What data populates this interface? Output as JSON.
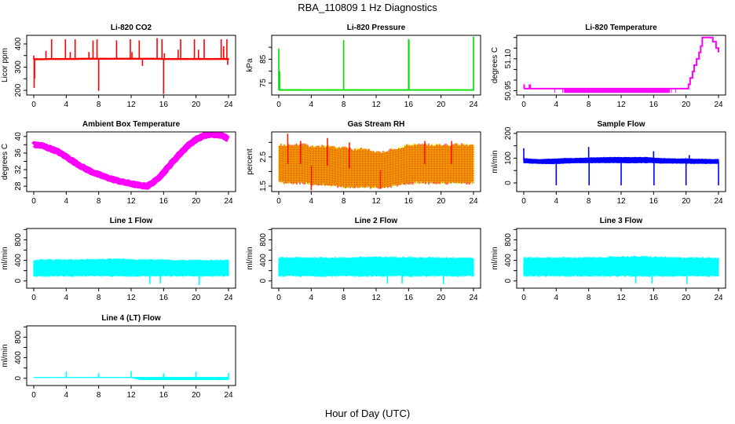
{
  "figure": {
    "title": "RBA_110809  1 Hz Diagnostics",
    "xlabel": "Hour of Day (UTC)"
  },
  "chart_data": [
    {
      "type": "line",
      "title": "Li-820 CO2",
      "ylabel": "Licor ppm",
      "color": "#ff0000",
      "xlim": [
        0,
        24
      ],
      "xticks": [
        0,
        4,
        8,
        12,
        16,
        20,
        24
      ],
      "ylim": [
        180,
        437
      ],
      "yticks": [
        200,
        250,
        300,
        350,
        400
      ],
      "ylabels": [
        200,
        300,
        400
      ],
      "band_lo": [
        330,
        330,
        331,
        331,
        331,
        331,
        332,
        332,
        332,
        332,
        332,
        332,
        332,
        332,
        332,
        332,
        331,
        331,
        331,
        331,
        331,
        331,
        331,
        331,
        331
      ],
      "band_hi": [
        338,
        338,
        339,
        339,
        339,
        339,
        340,
        340,
        340,
        340,
        340,
        340,
        340,
        340,
        340,
        340,
        339,
        339,
        339,
        339,
        339,
        339,
        339,
        339,
        339
      ],
      "spikes": [
        [
          0,
          350
        ],
        [
          0.05,
          210
        ],
        [
          0.1,
          250
        ],
        [
          1.5,
          370
        ],
        [
          2.2,
          420
        ],
        [
          3.9,
          420
        ],
        [
          4.5,
          365
        ],
        [
          5.1,
          420
        ],
        [
          6.8,
          365
        ],
        [
          7.3,
          415
        ],
        [
          7.8,
          420
        ],
        [
          8.0,
          198
        ],
        [
          10.2,
          415
        ],
        [
          11.9,
          420
        ],
        [
          12.1,
          365
        ],
        [
          13.0,
          415
        ],
        [
          13.4,
          305
        ],
        [
          15.2,
          425
        ],
        [
          15.8,
          420
        ],
        [
          16.0,
          185
        ],
        [
          16.1,
          360
        ],
        [
          17.8,
          375
        ],
        [
          18.1,
          420
        ],
        [
          19.8,
          420
        ],
        [
          20.3,
          375
        ],
        [
          21.0,
          420
        ],
        [
          23.1,
          420
        ],
        [
          23.4,
          390
        ],
        [
          23.8,
          420
        ],
        [
          23.9,
          310
        ]
      ]
    },
    {
      "type": "line",
      "title": "Li-820 Pressure",
      "ylabel": "kPa",
      "color": "#00dd00",
      "xlim": [
        0,
        24
      ],
      "xticks": [
        0,
        4,
        8,
        12,
        16,
        20,
        24
      ],
      "ylim": [
        70,
        95
      ],
      "yticks": [
        75,
        80,
        85,
        90
      ],
      "ylabels": [
        75,
        85
      ],
      "band_lo": [
        71.8,
        71.8,
        71.8,
        71.8,
        71.8,
        71.8,
        71.8,
        71.8,
        71.8,
        71.8,
        71.8,
        71.8,
        71.8,
        71.8,
        71.8,
        71.8,
        71.8,
        71.8,
        71.8,
        71.8,
        71.8,
        71.8,
        71.8,
        71.8,
        71.8
      ],
      "band_hi": [
        72.4,
        72.4,
        72.4,
        72.4,
        72.4,
        72.4,
        72.4,
        72.4,
        72.4,
        72.4,
        72.4,
        72.4,
        72.4,
        72.4,
        72.4,
        72.4,
        72.4,
        72.4,
        72.4,
        72.4,
        72.4,
        72.4,
        72.4,
        72.4,
        72.4
      ],
      "spikes": [
        [
          0,
          89.5
        ],
        [
          0.1,
          80
        ],
        [
          8,
          93
        ],
        [
          16,
          93.5
        ],
        [
          16.05,
          93
        ],
        [
          24,
          94.5
        ]
      ]
    },
    {
      "type": "step",
      "title": "Li-820 Temperature",
      "ylabel": "degrees C",
      "color": "#ff00ff",
      "xlim": [
        0,
        24
      ],
      "xticks": [
        0,
        4,
        8,
        12,
        16,
        20,
        24
      ],
      "ylim": [
        50.93,
        51.21
      ],
      "yticks": [
        50.95,
        51.0,
        51.05,
        51.1,
        51.15,
        51.2
      ],
      "ylabels": [
        50.95,
        51.1
      ],
      "steps": [
        [
          0,
          50.96
        ],
        [
          20.2,
          50.96
        ],
        [
          20.3,
          50.98
        ],
        [
          20.5,
          51.01
        ],
        [
          20.8,
          51.04
        ],
        [
          21.0,
          51.07
        ],
        [
          21.3,
          51.1
        ],
        [
          21.6,
          51.13
        ],
        [
          21.8,
          51.16
        ],
        [
          22.0,
          51.2
        ],
        [
          23.0,
          51.2
        ],
        [
          23.3,
          51.18
        ],
        [
          23.7,
          51.15
        ],
        [
          24,
          51.13
        ]
      ],
      "high_spikes": [
        [
          0.05,
          50.98
        ],
        [
          0.7,
          50.98
        ],
        [
          0.8,
          50.98
        ]
      ],
      "low_spike_range": [
        5.0,
        18.0
      ],
      "low_spike_value": 50.94,
      "low_spikes": [
        [
          3.8,
          50.94
        ],
        [
          4.8,
          50.94
        ],
        [
          18.2,
          50.94
        ],
        [
          18.7,
          50.94
        ]
      ]
    },
    {
      "type": "line",
      "title": "Ambient Box Temperature",
      "ylabel": "degrees C",
      "color": "#ff00ff",
      "xlim": [
        0,
        24
      ],
      "xticks": [
        0,
        4,
        8,
        12,
        16,
        20,
        24
      ],
      "ylim": [
        26.7,
        41.1
      ],
      "yticks": [
        28,
        30,
        32,
        34,
        36,
        38,
        40
      ],
      "ylabels": [
        28,
        32,
        36,
        40
      ],
      "hourly": [
        38.0,
        37.8,
        37.1,
        36.3,
        35.1,
        33.8,
        32.6,
        31.6,
        30.8,
        30.1,
        29.5,
        29.0,
        28.6,
        28.2,
        28.0,
        29.3,
        31.3,
        33.6,
        35.8,
        37.8,
        39.3,
        40.2,
        40.5,
        40.3,
        39.5
      ]
    },
    {
      "type": "area",
      "title": "Gas Stream RH",
      "ylabel": "percent",
      "colors": [
        "#ffff00",
        "#ff2000"
      ],
      "xlim": [
        0,
        24
      ],
      "xticks": [
        0,
        4,
        8,
        12,
        16,
        20,
        24
      ],
      "ylim": [
        1.31,
        3.36
      ],
      "yticks": [
        1.5,
        2.0,
        2.5,
        3.0
      ],
      "ylabels": [
        1.5,
        2.5
      ],
      "band_lo": [
        1.65,
        1.6,
        1.6,
        1.6,
        1.55,
        1.55,
        1.55,
        1.5,
        1.45,
        1.45,
        1.45,
        1.45,
        1.45,
        1.45,
        1.5,
        1.55,
        1.6,
        1.6,
        1.6,
        1.6,
        1.6,
        1.6,
        1.6,
        1.6,
        1.6
      ],
      "band_hi": [
        2.9,
        2.9,
        2.9,
        2.9,
        2.85,
        2.85,
        2.85,
        2.8,
        2.8,
        2.75,
        2.75,
        2.75,
        2.65,
        2.65,
        2.75,
        2.8,
        2.9,
        2.9,
        2.9,
        2.9,
        2.9,
        2.9,
        2.9,
        2.9,
        2.9
      ],
      "spikes": [
        [
          1.1,
          3.3
        ],
        [
          6,
          3.15
        ],
        [
          2.7,
          3.05
        ],
        [
          18,
          3.05
        ],
        [
          21.3,
          3.05
        ],
        [
          8.7,
          3.0
        ],
        [
          4.0,
          1.35
        ],
        [
          12.5,
          1.4
        ]
      ]
    },
    {
      "type": "line",
      "title": "Sample Flow",
      "ylabel": "ml/min",
      "color": "#0000ff",
      "xlim": [
        0,
        24
      ],
      "xticks": [
        0,
        4,
        8,
        12,
        16,
        20,
        24
      ],
      "ylim": [
        -35,
        206
      ],
      "yticks": [
        0,
        50,
        100,
        150,
        200
      ],
      "ylabels": [
        0,
        100,
        200
      ],
      "band_lo": [
        80,
        78,
        77,
        76,
        76,
        78,
        79,
        80,
        80,
        80,
        80,
        80,
        80,
        80,
        80,
        80,
        80,
        78,
        78,
        78,
        78,
        77,
        77,
        77,
        77
      ],
      "band_hi": [
        100,
        97,
        96,
        97,
        98,
        100,
        100,
        101,
        102,
        103,
        104,
        104,
        104,
        104,
        104,
        104,
        102,
        100,
        99,
        98,
        99,
        97,
        97,
        96,
        96
      ],
      "spikes": [
        [
          0,
          140
        ],
        [
          4,
          -10
        ],
        [
          8,
          145
        ],
        [
          8.05,
          -10
        ],
        [
          12,
          -10
        ],
        [
          16,
          128
        ],
        [
          16.05,
          -10
        ],
        [
          20,
          -10
        ],
        [
          20.4,
          112
        ],
        [
          24,
          -10
        ]
      ]
    },
    {
      "type": "area",
      "title": "Line 1 Flow",
      "ylabel": "ml/min",
      "color": "#00ffff",
      "xlim": [
        0,
        24
      ],
      "xticks": [
        0,
        4,
        8,
        12,
        16,
        20,
        24
      ],
      "ylim": [
        -141,
        1020
      ],
      "yticks": [
        0,
        200,
        400,
        600,
        800,
        1000
      ],
      "ylabels": [
        0,
        400,
        800
      ],
      "band_lo": [
        90,
        90,
        90,
        90,
        90,
        90,
        90,
        90,
        90,
        90,
        90,
        90,
        90,
        90,
        90,
        90,
        90,
        90,
        90,
        90,
        90,
        90,
        90,
        90,
        90
      ],
      "band_hi": [
        400,
        410,
        410,
        410,
        410,
        410,
        410,
        420,
        420,
        420,
        420,
        420,
        410,
        410,
        410,
        410,
        410,
        400,
        400,
        400,
        400,
        400,
        400,
        400,
        400
      ],
      "spikes": [
        [
          14.3,
          -60
        ],
        [
          15.6,
          -50
        ],
        [
          20.4,
          -80
        ]
      ]
    },
    {
      "type": "area",
      "title": "Line 2 Flow",
      "ylabel": "ml/min",
      "color": "#00ffff",
      "xlim": [
        0,
        24
      ],
      "xticks": [
        0,
        4,
        8,
        12,
        16,
        20,
        24
      ],
      "ylim": [
        -141,
        1020
      ],
      "yticks": [
        0,
        200,
        400,
        600,
        800,
        1000
      ],
      "ylabels": [
        0,
        400,
        800
      ],
      "band_lo": [
        90,
        90,
        90,
        90,
        90,
        90,
        90,
        90,
        90,
        90,
        90,
        90,
        90,
        90,
        90,
        90,
        90,
        90,
        90,
        90,
        90,
        90,
        90,
        90,
        90
      ],
      "band_hi": [
        450,
        450,
        450,
        450,
        450,
        450,
        450,
        450,
        450,
        450,
        460,
        460,
        460,
        460,
        460,
        460,
        460,
        450,
        450,
        450,
        450,
        450,
        450,
        450,
        440
      ],
      "spikes": [
        [
          13.4,
          -50
        ],
        [
          15.2,
          -50
        ],
        [
          20.3,
          -60
        ]
      ]
    },
    {
      "type": "area",
      "title": "Line 3 Flow",
      "ylabel": "ml/min",
      "color": "#00ffff",
      "xlim": [
        0,
        24
      ],
      "xticks": [
        0,
        4,
        8,
        12,
        16,
        20,
        24
      ],
      "ylim": [
        -141,
        1020
      ],
      "yticks": [
        0,
        200,
        400,
        600,
        800,
        1000
      ],
      "ylabels": [
        0,
        400,
        800
      ],
      "band_lo": [
        90,
        90,
        90,
        90,
        90,
        90,
        90,
        90,
        90,
        90,
        90,
        90,
        90,
        90,
        90,
        90,
        90,
        90,
        90,
        90,
        90,
        90,
        90,
        90,
        90
      ],
      "band_hi": [
        450,
        450,
        450,
        450,
        450,
        450,
        450,
        450,
        450,
        450,
        460,
        460,
        470,
        470,
        470,
        470,
        460,
        460,
        450,
        450,
        450,
        450,
        450,
        450,
        440
      ],
      "spikes": [
        [
          13.8,
          -50
        ],
        [
          15.8,
          -50
        ],
        [
          20.1,
          -60
        ]
      ]
    },
    {
      "type": "line",
      "title": "Line 4 (LT) Flow",
      "ylabel": "ml/min",
      "color": "#00ffff",
      "xlim": [
        0,
        24
      ],
      "xticks": [
        0,
        4,
        8,
        12,
        16,
        20,
        24
      ],
      "ylim": [
        -141,
        1020
      ],
      "yticks": [
        0,
        200,
        400,
        600,
        800,
        1000
      ],
      "ylabels": [
        0,
        400,
        800
      ],
      "band_lo": [
        5,
        5,
        5,
        5,
        5,
        5,
        5,
        5,
        5,
        5,
        5,
        5,
        5,
        -30,
        -35,
        -35,
        -35,
        -35,
        -35,
        -35,
        -35,
        -35,
        -35,
        -35,
        -30
      ],
      "band_hi": [
        25,
        25,
        25,
        25,
        25,
        25,
        25,
        25,
        25,
        25,
        25,
        25,
        25,
        25,
        25,
        25,
        25,
        25,
        25,
        25,
        25,
        25,
        25,
        25,
        25
      ],
      "spikes": [
        [
          4,
          130
        ],
        [
          8,
          100
        ],
        [
          12,
          140
        ],
        [
          16,
          100
        ],
        [
          20,
          130
        ],
        [
          24,
          100
        ]
      ]
    }
  ]
}
